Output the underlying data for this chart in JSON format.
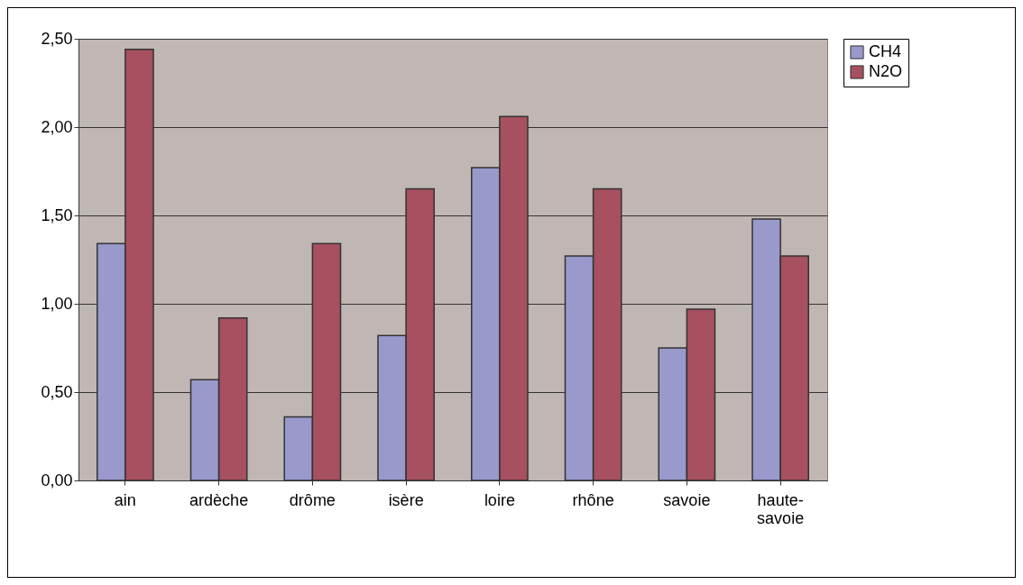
{
  "chart_data": {
    "type": "bar",
    "categories": [
      "ain",
      "ardèche",
      "drôme",
      "isère",
      "loire",
      "rhône",
      "savoie",
      "haute-savoie"
    ],
    "series": [
      {
        "name": "CH4",
        "color": "#9999cc",
        "values": [
          1.34,
          0.57,
          0.36,
          0.82,
          1.77,
          1.27,
          0.75,
          1.48
        ]
      },
      {
        "name": "N2O",
        "color": "#a65060",
        "values": [
          2.44,
          0.92,
          1.34,
          1.65,
          2.06,
          1.65,
          0.97,
          1.27
        ]
      }
    ],
    "ylim": [
      0,
      2.5
    ],
    "yticks": [
      {
        "value": 0,
        "label": "0,00"
      },
      {
        "value": 0.5,
        "label": "0,50"
      },
      {
        "value": 1,
        "label": "1,00"
      },
      {
        "value": 1.5,
        "label": "1,50"
      },
      {
        "value": 2,
        "label": "2,00"
      },
      {
        "value": 2.5,
        "label": "2,50"
      }
    ],
    "grid": "y",
    "legend": "right"
  }
}
